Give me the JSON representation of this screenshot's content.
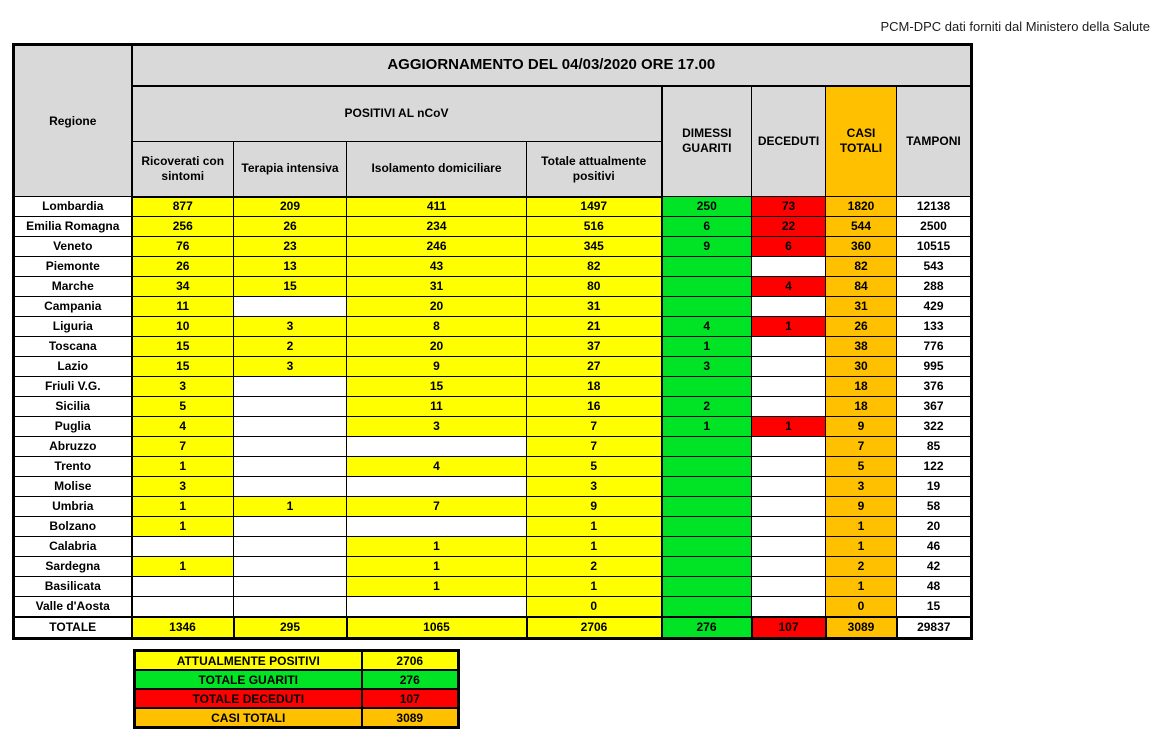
{
  "caption": "PCM-DPC dati forniti dal Ministero della Salute",
  "colors": {
    "yellow": "#FFFF00",
    "green": "#00E425",
    "red": "#FF0000",
    "orange": "#FFC000",
    "gray": "#D9D9D9",
    "border": "#000000"
  },
  "table": {
    "title": "AGGIORNAMENTO DEL 04/03/2020 ORE 17.00",
    "region_header": "Regione",
    "group_header": "POSITIVI AL nCoV",
    "sub_headers": [
      "Ricoverati con sintomi",
      "Terapia intensiva",
      "Isolamento domiciliare",
      "Totale attualmente positivi"
    ],
    "right_headers": [
      "DIMESSI GUARITI",
      "DECEDUTI",
      "CASI TOTALI",
      "TAMPONI"
    ],
    "columns": [
      "ricoverati-con-sintomi",
      "terapia-intensiva",
      "isolamento-domiciliare",
      "totale-attualmente-positivi",
      "dimessi-guariti",
      "deceduti",
      "casi-totali",
      "tamponi"
    ],
    "rows": [
      {
        "region": "Lombardia",
        "values": [
          "877",
          "209",
          "411",
          "1497",
          "250",
          "73",
          "1820",
          "12138"
        ]
      },
      {
        "region": "Emilia Romagna",
        "values": [
          "256",
          "26",
          "234",
          "516",
          "6",
          "22",
          "544",
          "2500"
        ]
      },
      {
        "region": "Veneto",
        "values": [
          "76",
          "23",
          "246",
          "345",
          "9",
          "6",
          "360",
          "10515"
        ]
      },
      {
        "region": "Piemonte",
        "values": [
          "26",
          "13",
          "43",
          "82",
          "",
          "",
          "82",
          "543"
        ]
      },
      {
        "region": "Marche",
        "values": [
          "34",
          "15",
          "31",
          "80",
          "",
          "4",
          "84",
          "288"
        ]
      },
      {
        "region": "Campania",
        "values": [
          "11",
          "",
          "20",
          "31",
          "",
          "",
          "31",
          "429"
        ]
      },
      {
        "region": "Liguria",
        "values": [
          "10",
          "3",
          "8",
          "21",
          "4",
          "1",
          "26",
          "133"
        ]
      },
      {
        "region": "Toscana",
        "values": [
          "15",
          "2",
          "20",
          "37",
          "1",
          "",
          "38",
          "776"
        ]
      },
      {
        "region": "Lazio",
        "values": [
          "15",
          "3",
          "9",
          "27",
          "3",
          "",
          "30",
          "995"
        ]
      },
      {
        "region": "Friuli V.G.",
        "values": [
          "3",
          "",
          "15",
          "18",
          "",
          "",
          "18",
          "376"
        ]
      },
      {
        "region": "Sicilia",
        "values": [
          "5",
          "",
          "11",
          "16",
          "2",
          "",
          "18",
          "367"
        ]
      },
      {
        "region": "Puglia",
        "values": [
          "4",
          "",
          "3",
          "7",
          "1",
          "1",
          "9",
          "322"
        ]
      },
      {
        "region": "Abruzzo",
        "values": [
          "7",
          "",
          "",
          "7",
          "",
          "",
          "7",
          "85"
        ]
      },
      {
        "region": "Trento",
        "values": [
          "1",
          "",
          "4",
          "5",
          "",
          "",
          "5",
          "122"
        ]
      },
      {
        "region": "Molise",
        "values": [
          "3",
          "",
          "",
          "3",
          "",
          "",
          "3",
          "19"
        ]
      },
      {
        "region": "Umbria",
        "values": [
          "1",
          "1",
          "7",
          "9",
          "",
          "",
          "9",
          "58"
        ]
      },
      {
        "region": "Bolzano",
        "values": [
          "1",
          "",
          "",
          "1",
          "",
          "",
          "1",
          "20"
        ]
      },
      {
        "region": "Calabria",
        "values": [
          "",
          "",
          "1",
          "1",
          "",
          "",
          "1",
          "46"
        ]
      },
      {
        "region": "Sardegna",
        "values": [
          "1",
          "",
          "1",
          "2",
          "",
          "",
          "2",
          "42"
        ]
      },
      {
        "region": "Basilicata",
        "values": [
          "",
          "",
          "1",
          "1",
          "",
          "",
          "1",
          "48"
        ]
      },
      {
        "region": "Valle d'Aosta",
        "values": [
          "",
          "",
          "",
          "0",
          "",
          "",
          "0",
          "15"
        ]
      }
    ],
    "total_row": {
      "region": "TOTALE",
      "values": [
        "1346",
        "295",
        "1065",
        "2706",
        "276",
        "107",
        "3089",
        "29837"
      ]
    }
  },
  "summary": {
    "rows": [
      {
        "label": "ATTUALMENTE POSITIVI",
        "value": "2706",
        "color": "yellow"
      },
      {
        "label": "TOTALE GUARITI",
        "value": "276",
        "color": "green"
      },
      {
        "label": "TOTALE DECEDUTI",
        "value": "107",
        "color": "red"
      },
      {
        "label": "CASI TOTALI",
        "value": "3089",
        "color": "orange"
      }
    ]
  }
}
